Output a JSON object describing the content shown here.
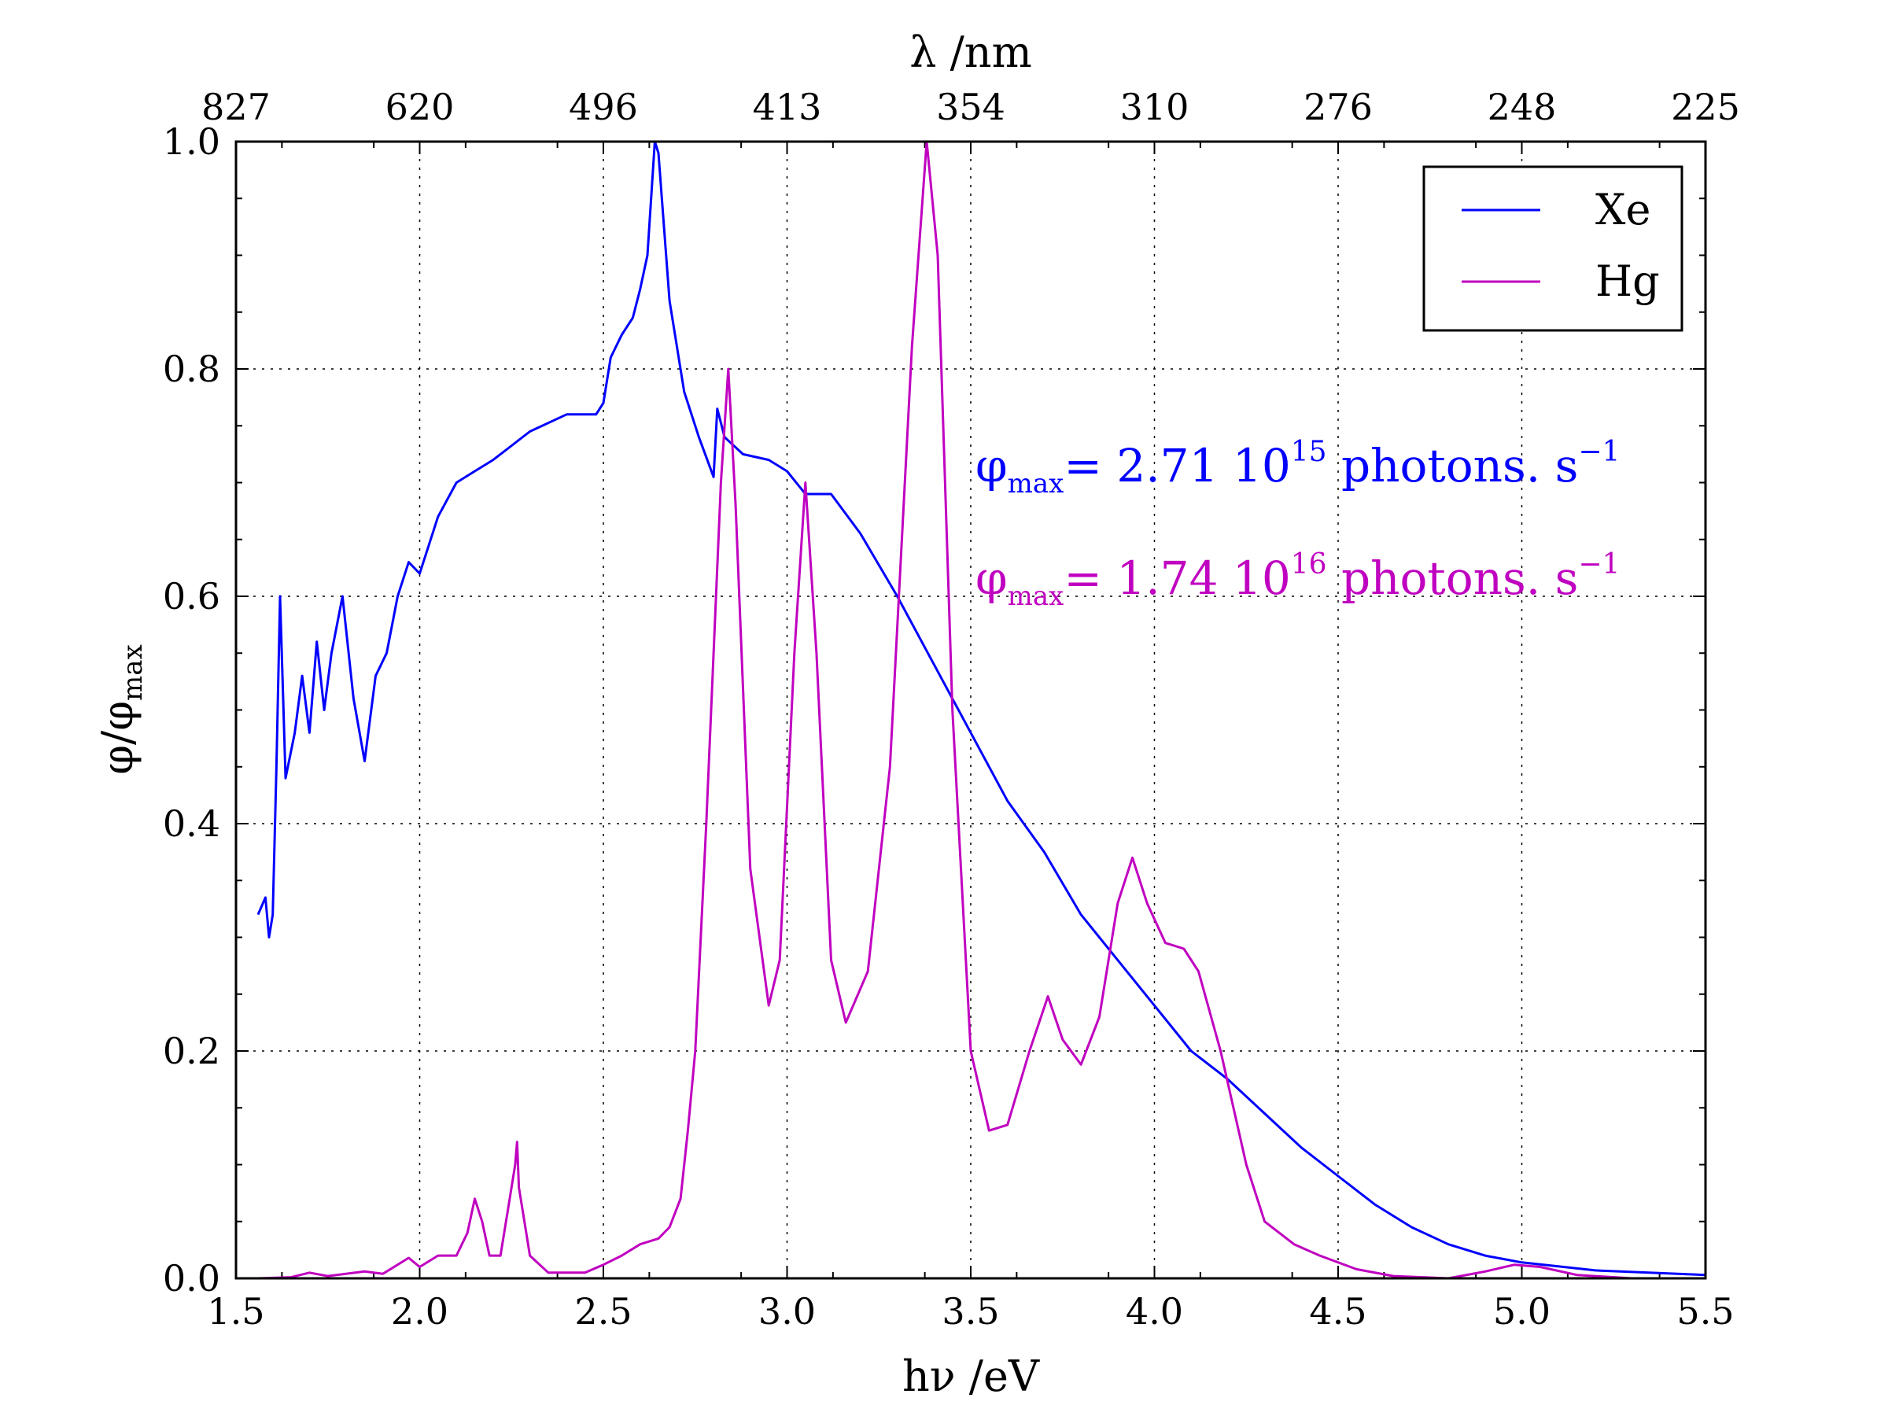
{
  "chart_data": {
    "type": "line",
    "xlabel": "hν /eV",
    "ylabel": "φ/φ",
    "ylabel_sub": "max",
    "top_xlabel": "λ /nm",
    "xlim": [
      1.5,
      5.5
    ],
    "ylim": [
      0.0,
      1.0
    ],
    "x_ticks": [
      "1.5",
      "2.0",
      "2.5",
      "3.0",
      "3.5",
      "4.0",
      "4.5",
      "5.0",
      "5.5"
    ],
    "y_ticks": [
      "0.0",
      "0.2",
      "0.4",
      "0.6",
      "0.8",
      "1.0"
    ],
    "top_ticks": [
      "827",
      "620",
      "496",
      "413",
      "354",
      "310",
      "276",
      "248",
      "225"
    ],
    "grid": true,
    "legend_position": "top-right",
    "series": [
      {
        "name": "Xe",
        "color": "#0000ff",
        "points": [
          [
            1.56,
            0.32
          ],
          [
            1.58,
            0.335
          ],
          [
            1.59,
            0.3
          ],
          [
            1.6,
            0.32
          ],
          [
            1.61,
            0.45
          ],
          [
            1.62,
            0.6
          ],
          [
            1.635,
            0.44
          ],
          [
            1.66,
            0.48
          ],
          [
            1.68,
            0.53
          ],
          [
            1.7,
            0.48
          ],
          [
            1.72,
            0.56
          ],
          [
            1.74,
            0.5
          ],
          [
            1.76,
            0.55
          ],
          [
            1.79,
            0.6
          ],
          [
            1.82,
            0.51
          ],
          [
            1.85,
            0.455
          ],
          [
            1.88,
            0.53
          ],
          [
            1.91,
            0.55
          ],
          [
            1.94,
            0.6
          ],
          [
            1.97,
            0.63
          ],
          [
            2.0,
            0.62
          ],
          [
            2.05,
            0.67
          ],
          [
            2.1,
            0.7
          ],
          [
            2.15,
            0.71
          ],
          [
            2.2,
            0.72
          ],
          [
            2.3,
            0.745
          ],
          [
            2.4,
            0.76
          ],
          [
            2.48,
            0.76
          ],
          [
            2.5,
            0.77
          ],
          [
            2.52,
            0.81
          ],
          [
            2.55,
            0.83
          ],
          [
            2.58,
            0.845
          ],
          [
            2.6,
            0.87
          ],
          [
            2.62,
            0.9
          ],
          [
            2.64,
            1.0
          ],
          [
            2.65,
            0.99
          ],
          [
            2.68,
            0.86
          ],
          [
            2.72,
            0.78
          ],
          [
            2.76,
            0.74
          ],
          [
            2.8,
            0.705
          ],
          [
            2.81,
            0.765
          ],
          [
            2.83,
            0.74
          ],
          [
            2.88,
            0.725
          ],
          [
            2.95,
            0.72
          ],
          [
            3.0,
            0.71
          ],
          [
            3.05,
            0.69
          ],
          [
            3.12,
            0.69
          ],
          [
            3.2,
            0.655
          ],
          [
            3.3,
            0.6
          ],
          [
            3.4,
            0.54
          ],
          [
            3.5,
            0.48
          ],
          [
            3.6,
            0.42
          ],
          [
            3.7,
            0.375
          ],
          [
            3.8,
            0.32
          ],
          [
            3.9,
            0.28
          ],
          [
            4.0,
            0.24
          ],
          [
            4.1,
            0.2
          ],
          [
            4.2,
            0.175
          ],
          [
            4.3,
            0.145
          ],
          [
            4.4,
            0.115
          ],
          [
            4.5,
            0.09
          ],
          [
            4.6,
            0.065
          ],
          [
            4.7,
            0.045
          ],
          [
            4.8,
            0.03
          ],
          [
            4.9,
            0.02
          ],
          [
            5.0,
            0.014
          ],
          [
            5.2,
            0.007
          ],
          [
            5.5,
            0.003
          ]
        ]
      },
      {
        "name": "Hg",
        "color": "#c000c0",
        "points": [
          [
            1.56,
            0.0
          ],
          [
            1.65,
            0.001
          ],
          [
            1.7,
            0.005
          ],
          [
            1.75,
            0.002
          ],
          [
            1.85,
            0.006
          ],
          [
            1.9,
            0.004
          ],
          [
            1.97,
            0.018
          ],
          [
            2.0,
            0.01
          ],
          [
            2.05,
            0.02
          ],
          [
            2.1,
            0.02
          ],
          [
            2.13,
            0.04
          ],
          [
            2.15,
            0.07
          ],
          [
            2.17,
            0.05
          ],
          [
            2.19,
            0.02
          ],
          [
            2.22,
            0.02
          ],
          [
            2.24,
            0.06
          ],
          [
            2.26,
            0.1
          ],
          [
            2.265,
            0.12
          ],
          [
            2.27,
            0.08
          ],
          [
            2.28,
            0.06
          ],
          [
            2.3,
            0.02
          ],
          [
            2.35,
            0.005
          ],
          [
            2.45,
            0.005
          ],
          [
            2.5,
            0.012
          ],
          [
            2.55,
            0.02
          ],
          [
            2.6,
            0.03
          ],
          [
            2.65,
            0.035
          ],
          [
            2.68,
            0.045
          ],
          [
            2.71,
            0.07
          ],
          [
            2.73,
            0.13
          ],
          [
            2.75,
            0.2
          ],
          [
            2.78,
            0.4
          ],
          [
            2.82,
            0.7
          ],
          [
            2.84,
            0.8
          ],
          [
            2.86,
            0.68
          ],
          [
            2.9,
            0.36
          ],
          [
            2.95,
            0.24
          ],
          [
            2.98,
            0.28
          ],
          [
            3.02,
            0.55
          ],
          [
            3.05,
            0.7
          ],
          [
            3.08,
            0.55
          ],
          [
            3.12,
            0.28
          ],
          [
            3.16,
            0.225
          ],
          [
            3.22,
            0.27
          ],
          [
            3.28,
            0.45
          ],
          [
            3.34,
            0.82
          ],
          [
            3.38,
            1.0
          ],
          [
            3.41,
            0.9
          ],
          [
            3.45,
            0.5
          ],
          [
            3.5,
            0.2
          ],
          [
            3.55,
            0.13
          ],
          [
            3.6,
            0.135
          ],
          [
            3.66,
            0.2
          ],
          [
            3.71,
            0.248
          ],
          [
            3.75,
            0.21
          ],
          [
            3.8,
            0.188
          ],
          [
            3.85,
            0.23
          ],
          [
            3.9,
            0.33
          ],
          [
            3.94,
            0.37
          ],
          [
            3.98,
            0.33
          ],
          [
            4.03,
            0.295
          ],
          [
            4.08,
            0.29
          ],
          [
            4.12,
            0.27
          ],
          [
            4.18,
            0.2
          ],
          [
            4.25,
            0.1
          ],
          [
            4.3,
            0.05
          ],
          [
            4.38,
            0.03
          ],
          [
            4.45,
            0.02
          ],
          [
            4.55,
            0.008
          ],
          [
            4.65,
            0.002
          ],
          [
            4.8,
            0.0
          ],
          [
            4.9,
            0.006
          ],
          [
            4.98,
            0.012
          ],
          [
            5.05,
            0.01
          ],
          [
            5.15,
            0.003
          ],
          [
            5.3,
            0.0
          ]
        ]
      }
    ],
    "annotations": [
      {
        "prefix": "φ",
        "sub": "max",
        "eq": "= 2.71 10",
        "sup": "15",
        "unit": " photons. s",
        "unit_sup": "−1",
        "color": "#0000ff"
      },
      {
        "prefix": "φ",
        "sub": "max",
        "eq": "= 1.74 10",
        "sup": "16",
        "unit": " photons. s",
        "unit_sup": "−1",
        "color": "#c000c0"
      }
    ]
  }
}
